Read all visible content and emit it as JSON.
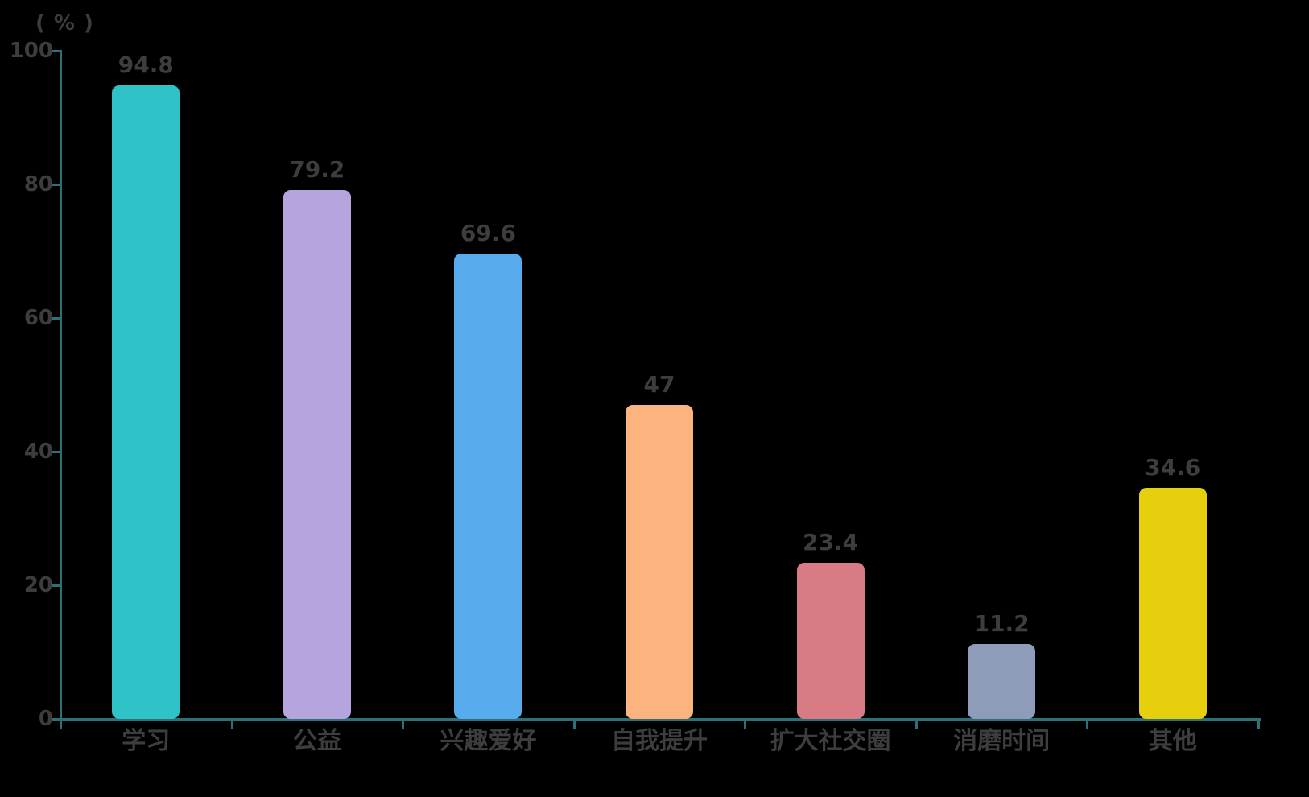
{
  "chart_data": {
    "type": "bar",
    "title": "",
    "xlabel": "",
    "ylabel": "( % )",
    "categories": [
      "学习",
      "公益",
      "兴趣爱好",
      "自我提升",
      "扩大社交圈",
      "消磨时间",
      "其他"
    ],
    "values": [
      94.8,
      79.2,
      69.6,
      47,
      23.4,
      11.2,
      34.6
    ],
    "value_labels": [
      "94.8",
      "79.2",
      "69.6",
      "47",
      "23.4",
      "11.2",
      "34.6"
    ],
    "bar_colors": [
      "#2fc3c7",
      "#b5a4de",
      "#58acee",
      "#fcb37d",
      "#d97b84",
      "#8e9cb9",
      "#e6d00e"
    ],
    "y_ticks": [
      0,
      20,
      40,
      60,
      80,
      100
    ],
    "ylim": [
      0,
      100
    ],
    "grid": false,
    "legend": "none",
    "axis_color": "#2e7078",
    "text_color": "#3d3d3d",
    "background_color": "#000000"
  }
}
